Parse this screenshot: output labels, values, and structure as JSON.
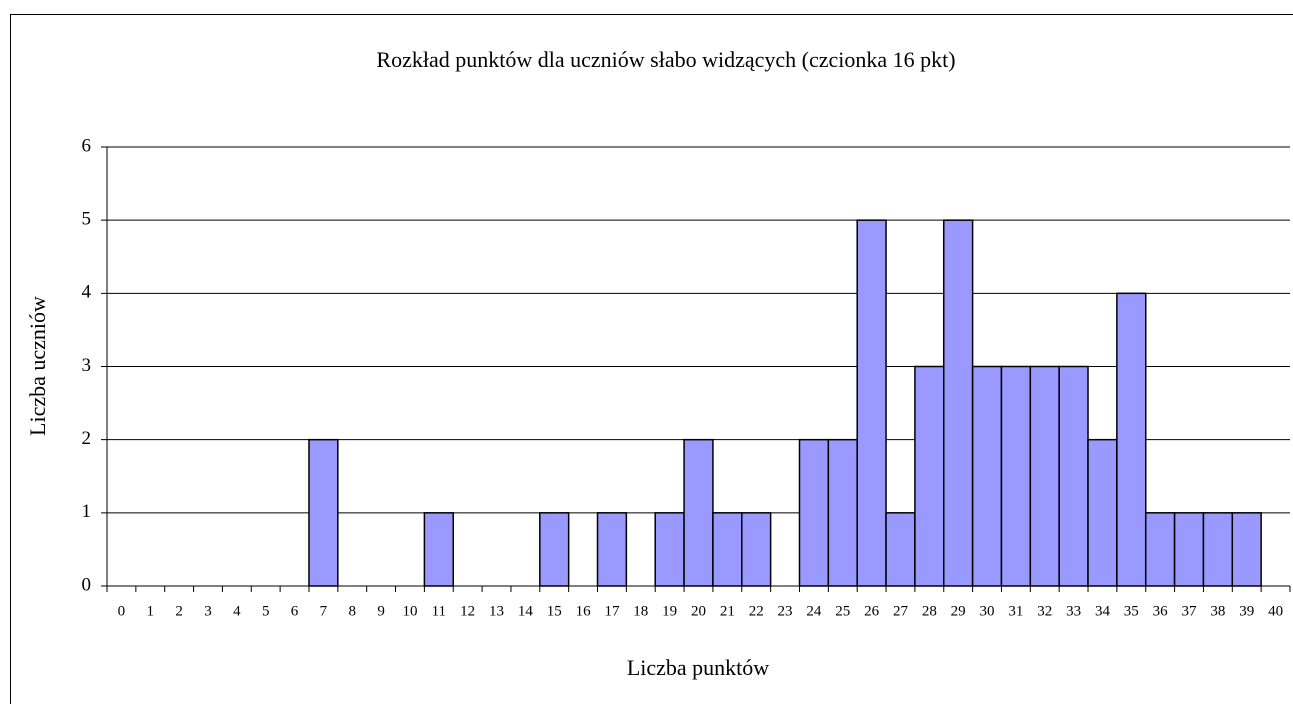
{
  "chart_data": {
    "type": "bar",
    "title": "Rozkład punktów dla uczniów słabo widzących (czcionka 16 pkt)",
    "x_label": "Liczba punktów",
    "y_label": "Liczba uczniów",
    "categories": [
      "0",
      "1",
      "2",
      "3",
      "4",
      "5",
      "6",
      "7",
      "8",
      "9",
      "10",
      "11",
      "12",
      "13",
      "14",
      "15",
      "16",
      "17",
      "18",
      "19",
      "20",
      "21",
      "22",
      "23",
      "24",
      "25",
      "26",
      "27",
      "28",
      "29",
      "30",
      "31",
      "32",
      "33",
      "34",
      "35",
      "36",
      "37",
      "38",
      "39",
      "40"
    ],
    "values": [
      0,
      0,
      0,
      0,
      0,
      0,
      0,
      2,
      0,
      0,
      0,
      1,
      0,
      0,
      0,
      1,
      0,
      1,
      0,
      1,
      2,
      1,
      1,
      0,
      2,
      2,
      5,
      1,
      3,
      5,
      3,
      3,
      3,
      3,
      2,
      4,
      1,
      1,
      1,
      1,
      0
    ],
    "color": "#9999ff",
    "ylim": [
      0,
      6
    ],
    "yticks": [
      0,
      1,
      2,
      3,
      4,
      5,
      6
    ],
    "grid": true
  }
}
